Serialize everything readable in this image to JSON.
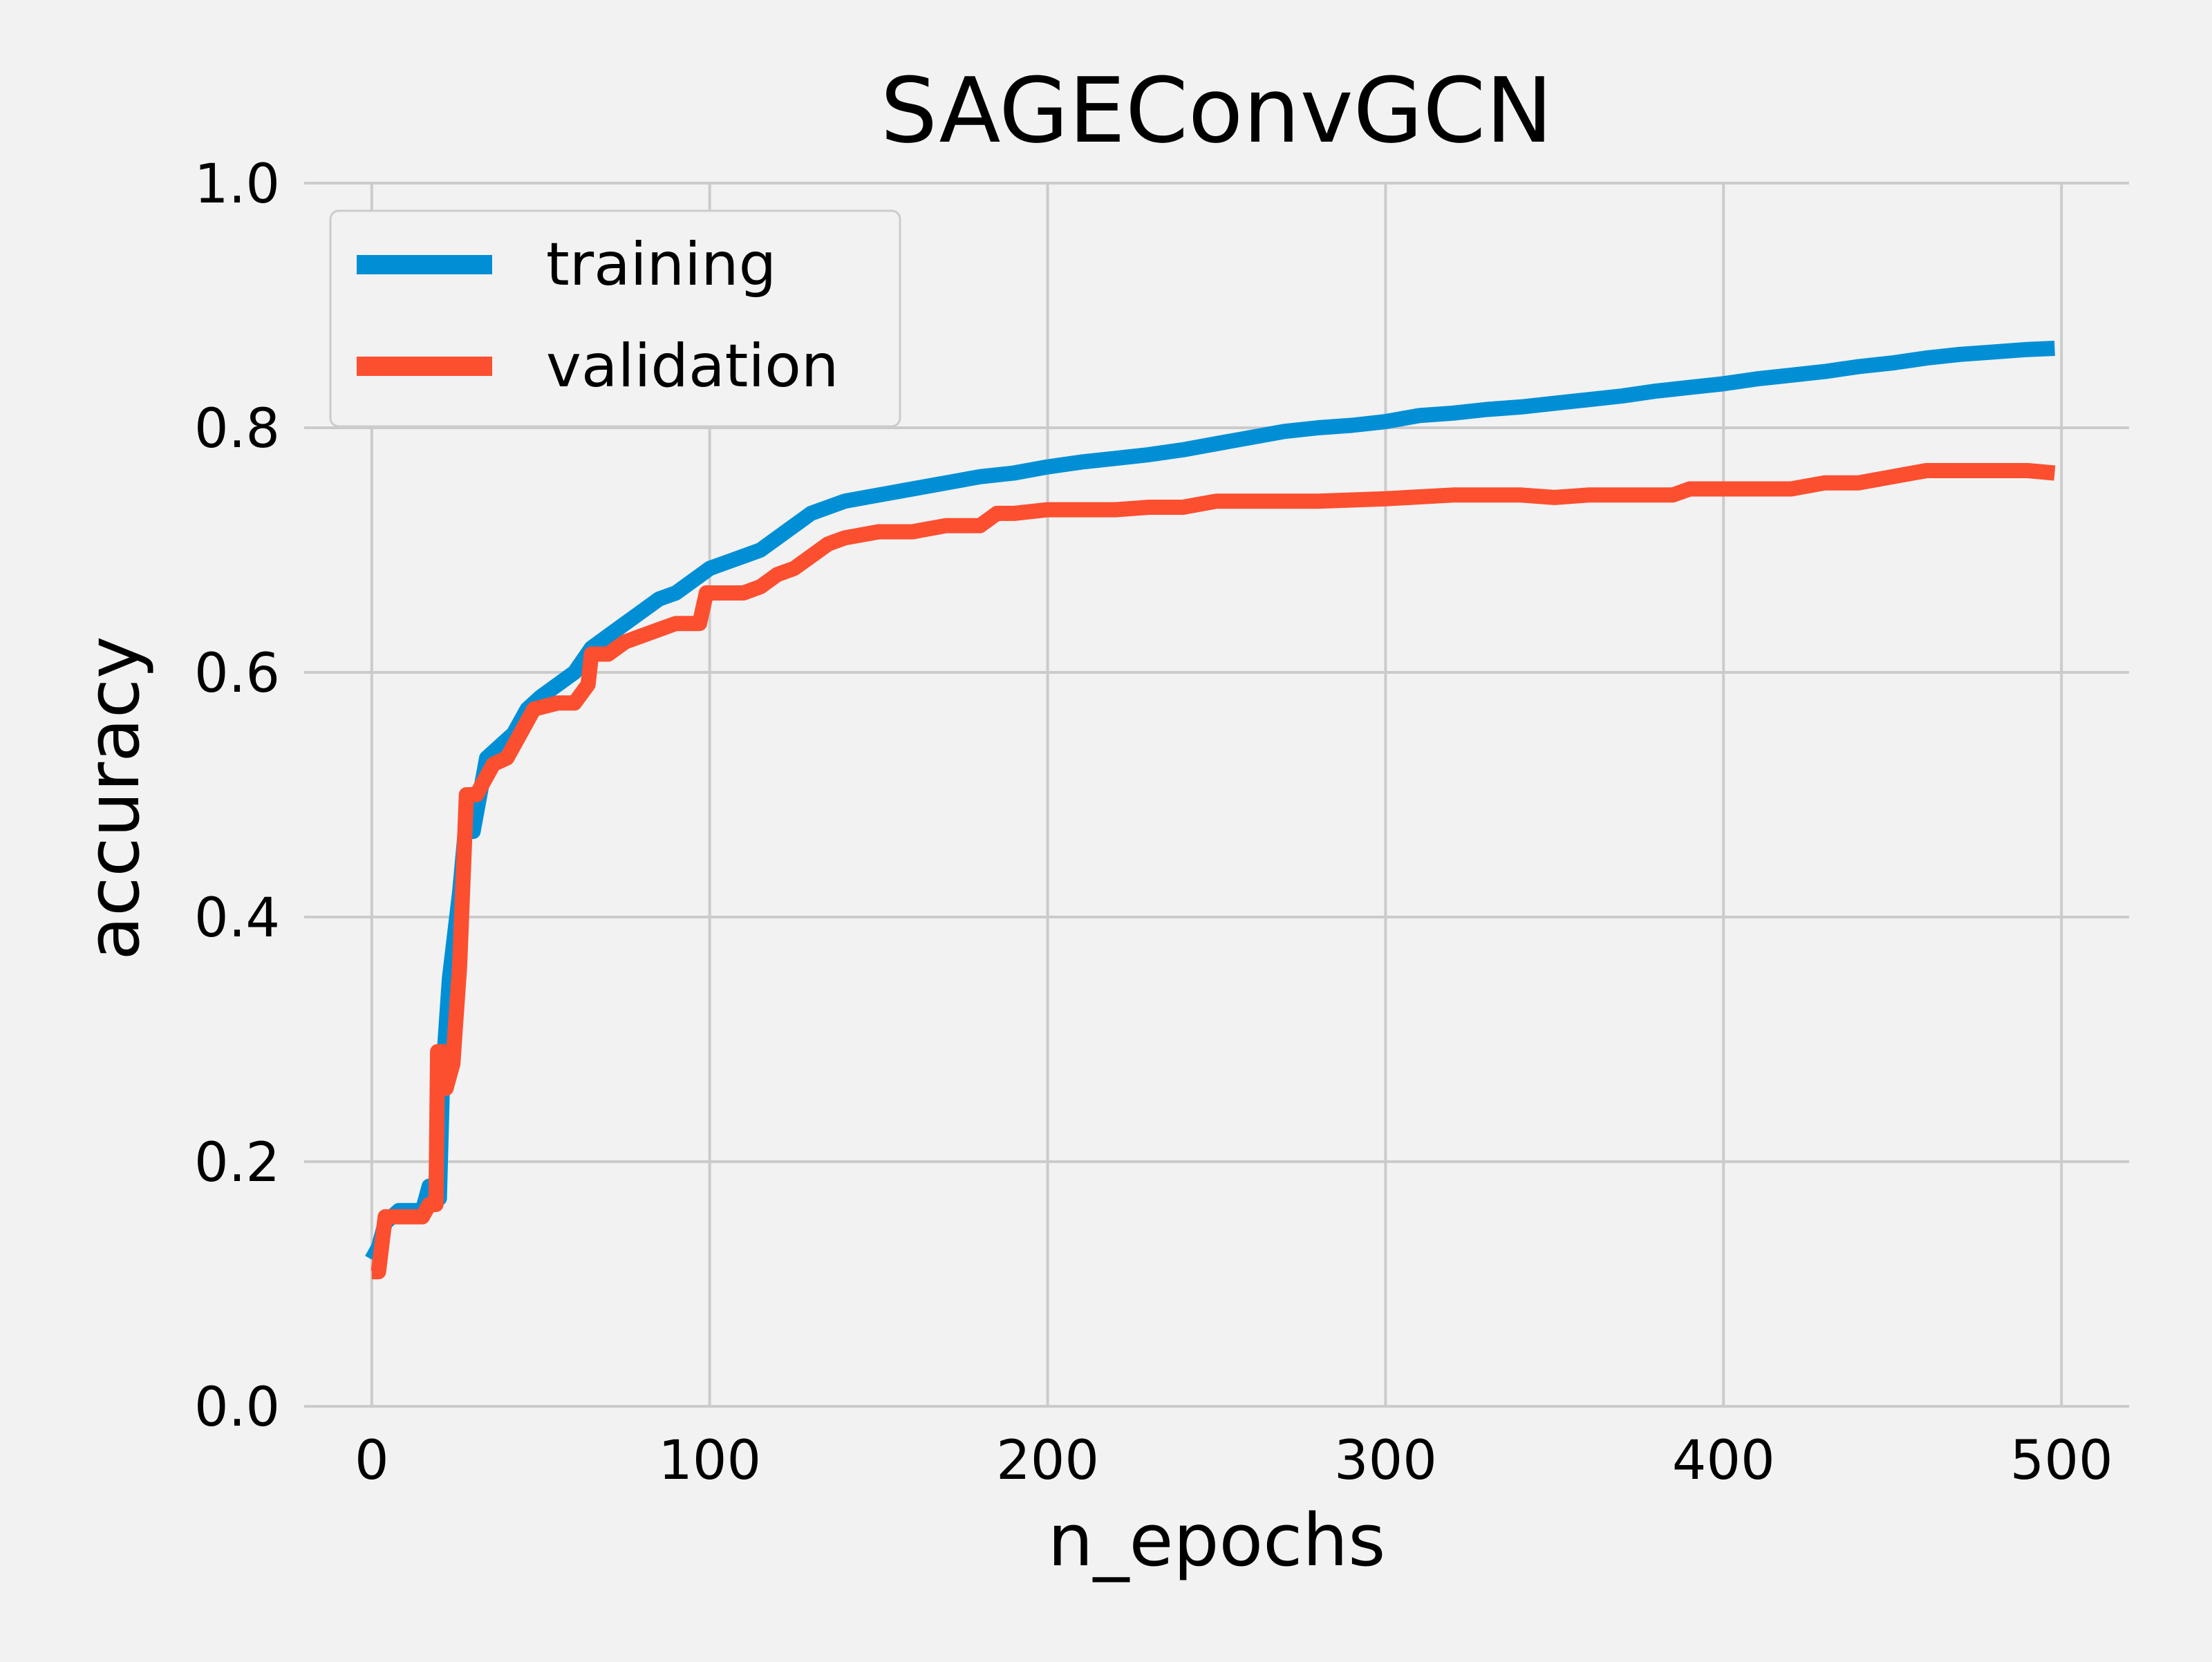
{
  "chart_data": {
    "type": "line",
    "title": "SAGEConvGCN",
    "xlabel": "n_epochs",
    "ylabel": "accuracy",
    "xlim": [
      -20,
      520
    ],
    "ylim": [
      0.0,
      1.0
    ],
    "x_ticks": [
      0,
      100,
      200,
      300,
      400,
      500
    ],
    "y_ticks": [
      0.0,
      0.2,
      0.4,
      0.6,
      0.8,
      1.0
    ],
    "x_tick_labels": [
      "0",
      "100",
      "200",
      "300",
      "400",
      "500"
    ],
    "y_tick_labels": [
      "0.0",
      "0.2",
      "0.4",
      "0.6",
      "0.8",
      "1.0"
    ],
    "grid": true,
    "legend_position": "top-left",
    "colors": {
      "background": "#f2f2f2",
      "grid": "#cbcbcb",
      "training": "#008fd5",
      "validation": "#fc4f30"
    },
    "series": [
      {
        "name": "training",
        "color": "#008fd5",
        "points": [
          [
            0,
            0.12
          ],
          [
            2,
            0.13
          ],
          [
            4,
            0.15
          ],
          [
            8,
            0.16
          ],
          [
            15,
            0.16
          ],
          [
            17,
            0.18
          ],
          [
            20,
            0.17
          ],
          [
            21,
            0.27
          ],
          [
            23,
            0.35
          ],
          [
            26,
            0.42
          ],
          [
            28,
            0.48
          ],
          [
            30,
            0.47
          ],
          [
            32,
            0.5
          ],
          [
            34,
            0.53
          ],
          [
            38,
            0.54
          ],
          [
            42,
            0.55
          ],
          [
            46,
            0.57
          ],
          [
            50,
            0.58
          ],
          [
            55,
            0.59
          ],
          [
            60,
            0.6
          ],
          [
            65,
            0.62
          ],
          [
            70,
            0.63
          ],
          [
            75,
            0.64
          ],
          [
            80,
            0.65
          ],
          [
            85,
            0.66
          ],
          [
            90,
            0.665
          ],
          [
            95,
            0.675
          ],
          [
            100,
            0.685
          ],
          [
            105,
            0.69
          ],
          [
            110,
            0.695
          ],
          [
            115,
            0.7
          ],
          [
            120,
            0.71
          ],
          [
            125,
            0.72
          ],
          [
            130,
            0.73
          ],
          [
            140,
            0.74
          ],
          [
            150,
            0.745
          ],
          [
            160,
            0.75
          ],
          [
            170,
            0.755
          ],
          [
            180,
            0.76
          ],
          [
            190,
            0.763
          ],
          [
            200,
            0.768
          ],
          [
            210,
            0.772
          ],
          [
            220,
            0.775
          ],
          [
            230,
            0.778
          ],
          [
            240,
            0.782
          ],
          [
            250,
            0.787
          ],
          [
            260,
            0.792
          ],
          [
            270,
            0.797
          ],
          [
            280,
            0.8
          ],
          [
            290,
            0.802
          ],
          [
            300,
            0.805
          ],
          [
            310,
            0.81
          ],
          [
            320,
            0.812
          ],
          [
            330,
            0.815
          ],
          [
            340,
            0.817
          ],
          [
            350,
            0.82
          ],
          [
            360,
            0.823
          ],
          [
            370,
            0.826
          ],
          [
            380,
            0.83
          ],
          [
            390,
            0.833
          ],
          [
            400,
            0.836
          ],
          [
            410,
            0.84
          ],
          [
            420,
            0.843
          ],
          [
            430,
            0.846
          ],
          [
            440,
            0.85
          ],
          [
            450,
            0.853
          ],
          [
            460,
            0.857
          ],
          [
            470,
            0.86
          ],
          [
            480,
            0.862
          ],
          [
            490,
            0.864
          ],
          [
            498,
            0.865
          ]
        ]
      },
      {
        "name": "validation",
        "color": "#fc4f30",
        "points": [
          [
            0,
            0.11
          ],
          [
            2,
            0.11
          ],
          [
            4,
            0.155
          ],
          [
            8,
            0.155
          ],
          [
            12,
            0.155
          ],
          [
            15,
            0.155
          ],
          [
            17,
            0.165
          ],
          [
            19,
            0.165
          ],
          [
            19.5,
            0.29
          ],
          [
            21,
            0.29
          ],
          [
            22,
            0.26
          ],
          [
            24,
            0.28
          ],
          [
            26,
            0.36
          ],
          [
            27,
            0.43
          ],
          [
            28,
            0.5
          ],
          [
            31,
            0.5
          ],
          [
            33,
            0.51
          ],
          [
            36,
            0.525
          ],
          [
            40,
            0.53
          ],
          [
            44,
            0.55
          ],
          [
            48,
            0.57
          ],
          [
            55,
            0.575
          ],
          [
            60,
            0.575
          ],
          [
            64,
            0.59
          ],
          [
            65,
            0.615
          ],
          [
            70,
            0.615
          ],
          [
            75,
            0.625
          ],
          [
            80,
            0.63
          ],
          [
            85,
            0.635
          ],
          [
            90,
            0.64
          ],
          [
            97,
            0.64
          ],
          [
            99,
            0.665
          ],
          [
            105,
            0.665
          ],
          [
            110,
            0.665
          ],
          [
            115,
            0.67
          ],
          [
            120,
            0.68
          ],
          [
            125,
            0.685
          ],
          [
            130,
            0.695
          ],
          [
            135,
            0.705
          ],
          [
            140,
            0.71
          ],
          [
            150,
            0.715
          ],
          [
            160,
            0.715
          ],
          [
            170,
            0.72
          ],
          [
            180,
            0.72
          ],
          [
            185,
            0.73
          ],
          [
            190,
            0.73
          ],
          [
            200,
            0.733
          ],
          [
            220,
            0.733
          ],
          [
            230,
            0.735
          ],
          [
            240,
            0.735
          ],
          [
            250,
            0.74
          ],
          [
            260,
            0.74
          ],
          [
            280,
            0.74
          ],
          [
            300,
            0.742
          ],
          [
            320,
            0.745
          ],
          [
            340,
            0.745
          ],
          [
            350,
            0.743
          ],
          [
            360,
            0.745
          ],
          [
            370,
            0.745
          ],
          [
            380,
            0.745
          ],
          [
            385,
            0.745
          ],
          [
            390,
            0.75
          ],
          [
            400,
            0.75
          ],
          [
            420,
            0.75
          ],
          [
            430,
            0.755
          ],
          [
            440,
            0.755
          ],
          [
            450,
            0.76
          ],
          [
            460,
            0.765
          ],
          [
            470,
            0.765
          ],
          [
            480,
            0.765
          ],
          [
            490,
            0.765
          ],
          [
            498,
            0.763
          ]
        ]
      }
    ]
  }
}
